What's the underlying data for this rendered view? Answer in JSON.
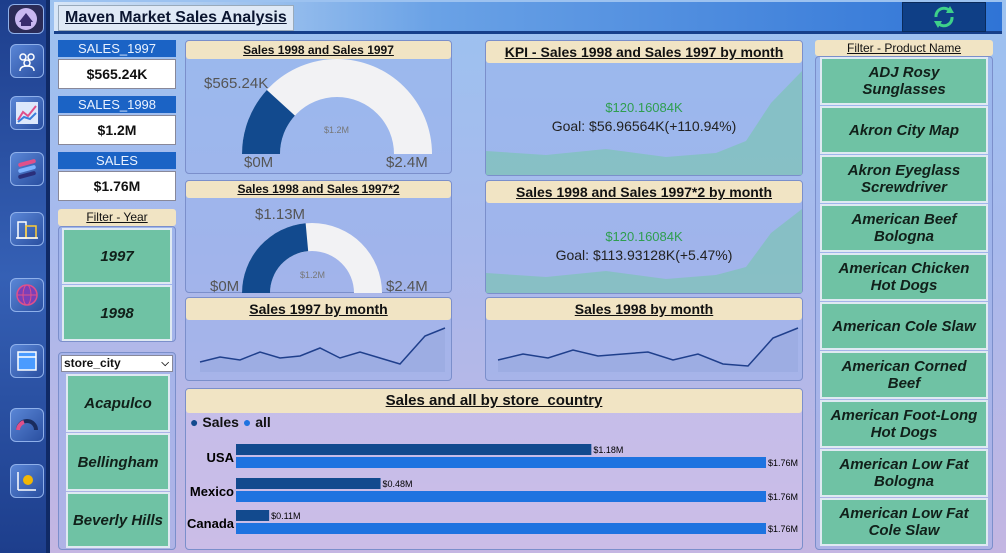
{
  "app": {
    "title": "Maven Market Sales Analysis"
  },
  "rail": {
    "icons": [
      "logo-icon",
      "people-icon",
      "line-chart-icon",
      "stack-icon",
      "building-icon",
      "globe-icon",
      "calendar-icon",
      "gauge-icon",
      "money-chart-icon"
    ]
  },
  "kpis": [
    {
      "label": "SALES_1997",
      "value": "$565.24K"
    },
    {
      "label": "SALES_1998",
      "value": "$1.2M"
    },
    {
      "label": "SALES",
      "value": "$1.76M"
    }
  ],
  "year_filter": {
    "title": "Filter - Year",
    "options": [
      "1997",
      "1998"
    ]
  },
  "city_filter": {
    "label": "store_city",
    "options": [
      "Acapulco",
      "Bellingham",
      "Beverly Hills"
    ]
  },
  "gauge1": {
    "title": "Sales 1998 and Sales 1997",
    "value": "$565.24K",
    "min": "$0M",
    "max": "$2.4M",
    "target": "$1.2M",
    "fill": 0.2355
  },
  "gauge2": {
    "title": "Sales 1998 and Sales 1997*2",
    "value": "$1.13M",
    "min": "$0M",
    "max": "$2.4M",
    "target": "$1.2M",
    "fill": 0.471
  },
  "kpi1": {
    "title": "KPI - Sales 1998 and Sales 1997 by month",
    "value": "$120.16084K",
    "goal": "Goal: $56.96564K(+110.94%)"
  },
  "kpi2": {
    "title": "Sales 1998 and Sales 1997*2 by month",
    "value": "$120.16084K",
    "goal": "Goal: $113.93128K(+5.47%)"
  },
  "line1": {
    "title": "Sales 1997 by month"
  },
  "line2": {
    "title": "Sales 1998 by month"
  },
  "bar_chart": {
    "title": "Sales and all by store_country"
  },
  "product_filter": {
    "title": "Filter - Product Name",
    "items": [
      "ADJ Rosy Sunglasses",
      "Akron City Map",
      "Akron Eyeglass Screwdriver",
      "American Beef Bologna",
      "American Chicken Hot Dogs",
      "American Cole Slaw",
      "American Corned Beef",
      "American Foot-Long Hot Dogs",
      "American Low Fat Bologna",
      "American Low Fat Cole Slaw"
    ]
  },
  "colors": {
    "sales": "#124a8e",
    "all": "#1e73e0",
    "gauge_fill": "#124a8e",
    "kpi_value": "#2e9e4f"
  },
  "chart_data": {
    "type": "bar",
    "title": "Sales and all by store_country",
    "orientation": "horizontal",
    "categories": [
      "USA",
      "Mexico",
      "Canada"
    ],
    "series": [
      {
        "name": "Sales",
        "values": [
          1.18,
          0.48,
          0.11
        ],
        "labels": [
          "$1.18M",
          "$0.48M",
          "$0.11M"
        ]
      },
      {
        "name": "all",
        "values": [
          1.76,
          1.76,
          1.76
        ],
        "labels": [
          "$1.76M",
          "$1.76M",
          "$1.76M"
        ]
      }
    ],
    "unit": "M",
    "xlim": [
      0,
      1.76
    ],
    "legend": "top-left"
  }
}
